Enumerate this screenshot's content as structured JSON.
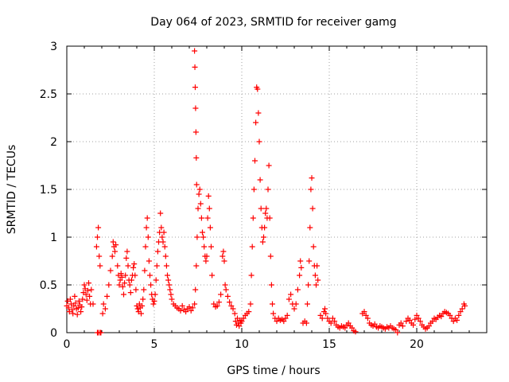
{
  "chart_data": {
    "type": "scatter",
    "title": "Day 064 of 2023, SRMTID for receiver gamg",
    "xlabel": "GPS time / hours",
    "ylabel": "SRMTID / TECUs",
    "xlim": [
      0,
      24
    ],
    "ylim": [
      0,
      3
    ],
    "xticks": [
      "0",
      "5",
      "10",
      "15",
      "20"
    ],
    "yticks": [
      "0",
      "0.5",
      "1",
      "1.5",
      "2",
      "2.5",
      "3"
    ],
    "marker": "+",
    "grid": true,
    "legend": "none",
    "series": [
      {
        "name": "SRMTID",
        "color": "#ff0000",
        "points": [
          [
            0.0,
            0.28
          ],
          [
            0.05,
            0.33
          ],
          [
            0.1,
            0.26
          ],
          [
            0.15,
            0.22
          ],
          [
            0.2,
            0.35
          ],
          [
            0.25,
            0.3
          ],
          [
            0.3,
            0.24
          ],
          [
            0.35,
            0.2
          ],
          [
            0.4,
            0.28
          ],
          [
            0.45,
            0.38
          ],
          [
            0.5,
            0.31
          ],
          [
            0.55,
            0.25
          ],
          [
            0.6,
            0.19
          ],
          [
            0.65,
            0.26
          ],
          [
            0.7,
            0.33
          ],
          [
            0.75,
            0.29
          ],
          [
            0.8,
            0.22
          ],
          [
            0.85,
            0.27
          ],
          [
            0.9,
            0.35
          ],
          [
            0.95,
            0.42
          ],
          [
            1.0,
            0.5
          ],
          [
            1.05,
            0.46
          ],
          [
            1.1,
            0.4
          ],
          [
            1.15,
            0.34
          ],
          [
            1.2,
            0.44
          ],
          [
            1.25,
            0.52
          ],
          [
            1.3,
            0.38
          ],
          [
            1.35,
            0.3
          ],
          [
            1.4,
            0.45
          ],
          [
            1.5,
            0.3
          ],
          [
            1.7,
            0.9
          ],
          [
            1.75,
            1.0
          ],
          [
            1.8,
            1.1
          ],
          [
            1.85,
            0.8
          ],
          [
            1.9,
            0.7
          ],
          [
            1.75,
            0.0
          ],
          [
            1.8,
            0.0
          ],
          [
            1.9,
            0.0
          ],
          [
            1.95,
            0.0
          ],
          [
            2.05,
            0.2
          ],
          [
            2.1,
            0.3
          ],
          [
            2.2,
            0.25
          ],
          [
            2.3,
            0.38
          ],
          [
            2.4,
            0.5
          ],
          [
            2.5,
            0.65
          ],
          [
            2.6,
            0.8
          ],
          [
            2.65,
            0.95
          ],
          [
            2.7,
            0.9
          ],
          [
            2.75,
            0.85
          ],
          [
            2.8,
            0.92
          ],
          [
            2.9,
            0.7
          ],
          [
            2.95,
            0.6
          ],
          [
            3.0,
            0.5
          ],
          [
            3.05,
            0.55
          ],
          [
            3.1,
            0.62
          ],
          [
            3.15,
            0.58
          ],
          [
            3.2,
            0.48
          ],
          [
            3.25,
            0.4
          ],
          [
            3.3,
            0.52
          ],
          [
            3.35,
            0.6
          ],
          [
            3.4,
            0.78
          ],
          [
            3.45,
            0.85
          ],
          [
            3.5,
            0.7
          ],
          [
            3.55,
            0.55
          ],
          [
            3.6,
            0.5
          ],
          [
            3.65,
            0.42
          ],
          [
            3.7,
            0.55
          ],
          [
            3.75,
            0.6
          ],
          [
            3.8,
            0.68
          ],
          [
            3.85,
            0.72
          ],
          [
            3.9,
            0.6
          ],
          [
            3.95,
            0.45
          ],
          [
            4.0,
            0.28
          ],
          [
            4.05,
            0.25
          ],
          [
            4.1,
            0.22
          ],
          [
            4.15,
            0.3
          ],
          [
            4.2,
            0.26
          ],
          [
            4.25,
            0.2
          ],
          [
            4.3,
            0.28
          ],
          [
            4.35,
            0.35
          ],
          [
            4.4,
            0.45
          ],
          [
            4.45,
            0.65
          ],
          [
            4.5,
            0.9
          ],
          [
            4.55,
            1.1
          ],
          [
            4.6,
            1.2
          ],
          [
            4.65,
            1.0
          ],
          [
            4.7,
            0.75
          ],
          [
            4.75,
            0.6
          ],
          [
            4.8,
            0.5
          ],
          [
            4.85,
            0.4
          ],
          [
            4.9,
            0.35
          ],
          [
            4.95,
            0.3
          ],
          [
            5.0,
            0.33
          ],
          [
            5.05,
            0.4
          ],
          [
            5.1,
            0.55
          ],
          [
            5.15,
            0.7
          ],
          [
            5.2,
            0.85
          ],
          [
            5.25,
            0.95
          ],
          [
            5.3,
            1.05
          ],
          [
            5.35,
            1.25
          ],
          [
            5.4,
            1.1
          ],
          [
            5.45,
            1.0
          ],
          [
            5.5,
            0.95
          ],
          [
            5.55,
            1.05
          ],
          [
            5.6,
            0.9
          ],
          [
            5.65,
            0.8
          ],
          [
            5.7,
            0.7
          ],
          [
            5.75,
            0.6
          ],
          [
            5.8,
            0.55
          ],
          [
            5.85,
            0.5
          ],
          [
            5.9,
            0.45
          ],
          [
            5.95,
            0.4
          ],
          [
            6.0,
            0.35
          ],
          [
            6.1,
            0.3
          ],
          [
            6.2,
            0.28
          ],
          [
            6.3,
            0.26
          ],
          [
            6.4,
            0.25
          ],
          [
            6.5,
            0.23
          ],
          [
            6.6,
            0.28
          ],
          [
            6.7,
            0.24
          ],
          [
            6.8,
            0.22
          ],
          [
            6.9,
            0.25
          ],
          [
            7.0,
            0.27
          ],
          [
            7.1,
            0.23
          ],
          [
            7.2,
            0.26
          ],
          [
            7.3,
            0.3
          ],
          [
            7.35,
            0.45
          ],
          [
            7.4,
            0.7
          ],
          [
            7.45,
            1.0
          ],
          [
            7.5,
            1.3
          ],
          [
            7.55,
            1.45
          ],
          [
            7.6,
            1.5
          ],
          [
            7.65,
            1.35
          ],
          [
            7.7,
            1.2
          ],
          [
            7.75,
            1.05
          ],
          [
            7.8,
            1.0
          ],
          [
            7.85,
            0.9
          ],
          [
            7.9,
            0.8
          ],
          [
            7.95,
            0.75
          ],
          [
            8.0,
            0.8
          ],
          [
            7.3,
            2.95
          ],
          [
            7.32,
            2.78
          ],
          [
            7.34,
            2.57
          ],
          [
            7.36,
            2.35
          ],
          [
            7.38,
            2.1
          ],
          [
            7.4,
            1.83
          ],
          [
            7.42,
            1.55
          ],
          [
            8.05,
            1.2
          ],
          [
            8.1,
            1.43
          ],
          [
            8.15,
            1.3
          ],
          [
            8.2,
            1.1
          ],
          [
            8.25,
            0.9
          ],
          [
            8.3,
            0.6
          ],
          [
            8.4,
            0.3
          ],
          [
            8.5,
            0.27
          ],
          [
            8.6,
            0.28
          ],
          [
            8.7,
            0.32
          ],
          [
            8.8,
            0.4
          ],
          [
            8.9,
            0.8
          ],
          [
            8.95,
            0.85
          ],
          [
            9.0,
            0.75
          ],
          [
            9.05,
            0.5
          ],
          [
            9.1,
            0.45
          ],
          [
            9.2,
            0.38
          ],
          [
            9.3,
            0.32
          ],
          [
            9.4,
            0.28
          ],
          [
            9.5,
            0.25
          ],
          [
            9.6,
            0.2
          ],
          [
            9.65,
            0.12
          ],
          [
            9.7,
            0.08
          ],
          [
            9.75,
            0.15
          ],
          [
            9.8,
            0.1
          ],
          [
            9.85,
            0.07
          ],
          [
            9.9,
            0.13
          ],
          [
            9.95,
            0.1
          ],
          [
            10.0,
            0.12
          ],
          [
            10.1,
            0.15
          ],
          [
            10.2,
            0.18
          ],
          [
            10.3,
            0.2
          ],
          [
            10.4,
            0.22
          ],
          [
            10.5,
            0.3
          ],
          [
            10.55,
            0.6
          ],
          [
            10.6,
            0.9
          ],
          [
            10.65,
            1.2
          ],
          [
            10.7,
            1.5
          ],
          [
            10.75,
            1.8
          ],
          [
            10.8,
            2.2
          ],
          [
            10.85,
            2.57
          ],
          [
            10.9,
            2.55
          ],
          [
            10.95,
            2.3
          ],
          [
            11.0,
            2.0
          ],
          [
            11.05,
            1.6
          ],
          [
            11.1,
            1.3
          ],
          [
            11.15,
            1.1
          ],
          [
            11.2,
            0.95
          ],
          [
            11.25,
            1.0
          ],
          [
            11.3,
            1.1
          ],
          [
            11.35,
            1.25
          ],
          [
            11.4,
            1.3
          ],
          [
            11.45,
            1.2
          ],
          [
            11.5,
            1.5
          ],
          [
            11.55,
            1.75
          ],
          [
            11.6,
            1.2
          ],
          [
            11.65,
            0.8
          ],
          [
            11.7,
            0.5
          ],
          [
            11.75,
            0.3
          ],
          [
            11.8,
            0.2
          ],
          [
            11.9,
            0.15
          ],
          [
            12.0,
            0.12
          ],
          [
            12.1,
            0.15
          ],
          [
            12.2,
            0.13
          ],
          [
            12.3,
            0.14
          ],
          [
            12.4,
            0.12
          ],
          [
            12.5,
            0.15
          ],
          [
            12.6,
            0.18
          ],
          [
            12.7,
            0.35
          ],
          [
            12.8,
            0.4
          ],
          [
            12.9,
            0.3
          ],
          [
            13.0,
            0.25
          ],
          [
            13.1,
            0.3
          ],
          [
            13.2,
            0.45
          ],
          [
            13.3,
            0.6
          ],
          [
            13.35,
            0.75
          ],
          [
            13.4,
            0.68
          ],
          [
            13.5,
            0.1
          ],
          [
            13.6,
            0.12
          ],
          [
            13.7,
            0.1
          ],
          [
            13.75,
            0.3
          ],
          [
            13.8,
            0.5
          ],
          [
            13.85,
            0.75
          ],
          [
            13.9,
            1.1
          ],
          [
            13.95,
            1.5
          ],
          [
            14.0,
            1.62
          ],
          [
            14.05,
            1.3
          ],
          [
            14.1,
            0.9
          ],
          [
            14.15,
            0.7
          ],
          [
            14.2,
            0.6
          ],
          [
            14.25,
            0.5
          ],
          [
            14.3,
            0.7
          ],
          [
            14.35,
            0.55
          ],
          [
            14.5,
            0.18
          ],
          [
            14.6,
            0.15
          ],
          [
            14.7,
            0.22
          ],
          [
            14.75,
            0.25
          ],
          [
            14.8,
            0.2
          ],
          [
            14.9,
            0.15
          ],
          [
            15.0,
            0.12
          ],
          [
            15.1,
            0.1
          ],
          [
            15.2,
            0.15
          ],
          [
            15.3,
            0.12
          ],
          [
            15.4,
            0.08
          ],
          [
            15.5,
            0.06
          ],
          [
            15.6,
            0.05
          ],
          [
            15.7,
            0.07
          ],
          [
            15.8,
            0.06
          ],
          [
            15.9,
            0.05
          ],
          [
            16.0,
            0.08
          ],
          [
            16.1,
            0.1
          ],
          [
            16.2,
            0.07
          ],
          [
            16.3,
            0.05
          ],
          [
            16.4,
            0.02
          ],
          [
            16.5,
            0.01
          ],
          [
            16.9,
            0.2
          ],
          [
            17.0,
            0.22
          ],
          [
            17.1,
            0.18
          ],
          [
            17.2,
            0.15
          ],
          [
            17.3,
            0.1
          ],
          [
            17.4,
            0.08
          ],
          [
            17.5,
            0.07
          ],
          [
            17.6,
            0.09
          ],
          [
            17.7,
            0.06
          ],
          [
            17.8,
            0.05
          ],
          [
            17.9,
            0.07
          ],
          [
            18.0,
            0.06
          ],
          [
            18.1,
            0.05
          ],
          [
            18.2,
            0.04
          ],
          [
            18.3,
            0.06
          ],
          [
            18.4,
            0.05
          ],
          [
            18.5,
            0.07
          ],
          [
            18.6,
            0.05
          ],
          [
            18.7,
            0.04
          ],
          [
            18.8,
            0.03
          ],
          [
            18.9,
            0.0
          ],
          [
            19.0,
            0.08
          ],
          [
            19.1,
            0.1
          ],
          [
            19.2,
            0.07
          ],
          [
            19.4,
            0.12
          ],
          [
            19.5,
            0.15
          ],
          [
            19.6,
            0.13
          ],
          [
            19.7,
            0.1
          ],
          [
            19.8,
            0.08
          ],
          [
            19.9,
            0.14
          ],
          [
            20.0,
            0.18
          ],
          [
            20.1,
            0.15
          ],
          [
            20.2,
            0.12
          ],
          [
            20.3,
            0.08
          ],
          [
            20.4,
            0.06
          ],
          [
            20.5,
            0.04
          ],
          [
            20.6,
            0.05
          ],
          [
            20.7,
            0.07
          ],
          [
            20.8,
            0.1
          ],
          [
            20.9,
            0.12
          ],
          [
            21.0,
            0.15
          ],
          [
            21.1,
            0.14
          ],
          [
            21.2,
            0.16
          ],
          [
            21.3,
            0.18
          ],
          [
            21.4,
            0.17
          ],
          [
            21.5,
            0.2
          ],
          [
            21.6,
            0.22
          ],
          [
            21.7,
            0.21
          ],
          [
            21.8,
            0.2
          ],
          [
            21.9,
            0.18
          ],
          [
            22.0,
            0.15
          ],
          [
            22.1,
            0.12
          ],
          [
            22.2,
            0.15
          ],
          [
            22.3,
            0.13
          ],
          [
            22.4,
            0.18
          ],
          [
            22.5,
            0.22
          ],
          [
            22.6,
            0.25
          ],
          [
            22.7,
            0.3
          ],
          [
            22.75,
            0.28
          ]
        ]
      }
    ]
  }
}
